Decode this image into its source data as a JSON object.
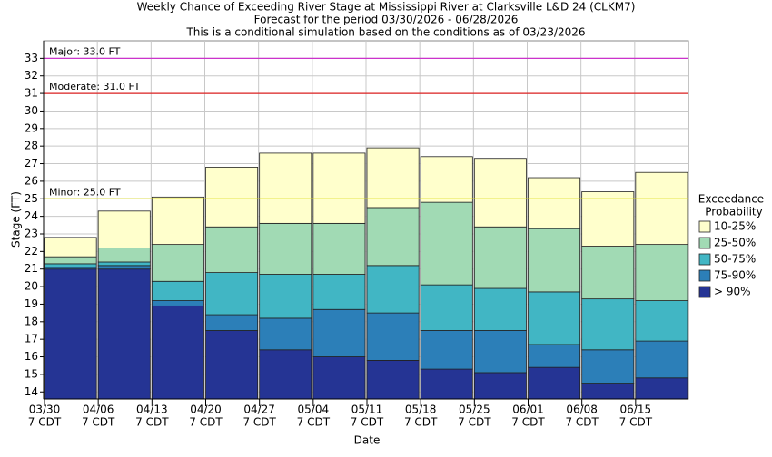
{
  "chart_data": {
    "type": "floating-bar",
    "title": [
      "Weekly Chance of Exceeding River Stage at Mississippi River at Clarksville L&D 24 (CLKM7)",
      "Forecast for the period 03/30/2026 - 06/28/2026",
      "This is a conditional simulation based on the conditions as of 03/23/2026"
    ],
    "x_label": "Date",
    "y_label": "Stage (FT)",
    "categories": [
      "03/30",
      "04/06",
      "04/13",
      "04/20",
      "04/27",
      "05/04",
      "05/11",
      "05/18",
      "05/25",
      "06/01",
      "06/08",
      "06/15"
    ],
    "category_times": [
      "7 CDT",
      "7 CDT",
      "7 CDT",
      "7 CDT",
      "7 CDT",
      "7 CDT",
      "7 CDT",
      "7 CDT",
      "7 CDT",
      "7 CDT",
      "7 CDT",
      "7 CDT"
    ],
    "ylim": [
      13.6,
      34.0
    ],
    "yticks": [
      14,
      15,
      16,
      17,
      18,
      19,
      20,
      21,
      22,
      23,
      24,
      25,
      26,
      27,
      28,
      29,
      30,
      31,
      32,
      33
    ],
    "grid": true,
    "legend_title": [
      "Exceedance",
      "Probability"
    ],
    "series": [
      {
        "name": "> 90%",
        "color": "#253494",
        "values": [
          21.0,
          21.0,
          18.9,
          17.5,
          16.4,
          16.0,
          15.8,
          15.3,
          15.1,
          15.4,
          14.5,
          14.8
        ]
      },
      {
        "name": "75-90%",
        "color": "#2c7fb8",
        "values": [
          21.1,
          21.2,
          19.2,
          18.4,
          18.2,
          18.7,
          18.5,
          17.5,
          17.5,
          16.7,
          16.4,
          16.9
        ]
      },
      {
        "name": "50-75%",
        "color": "#41b6c4",
        "values": [
          21.3,
          21.4,
          20.3,
          20.8,
          20.7,
          20.7,
          21.2,
          20.1,
          19.9,
          19.7,
          19.3,
          19.2
        ]
      },
      {
        "name": "25-50%",
        "color": "#a1dab4",
        "values": [
          21.7,
          22.2,
          22.4,
          23.4,
          23.6,
          23.6,
          24.5,
          24.8,
          23.4,
          23.3,
          22.3,
          22.4
        ]
      },
      {
        "name": "10-25%",
        "color": "#ffffcc",
        "values": [
          22.8,
          24.3,
          25.1,
          26.8,
          27.6,
          27.6,
          27.9,
          27.4,
          27.3,
          26.2,
          25.4,
          26.5
        ]
      }
    ],
    "thresholds": [
      {
        "label": "Major: 33.0 FT",
        "value": 33.0,
        "color": "#cc33cc"
      },
      {
        "label": "Moderate: 31.0 FT",
        "value": 31.0,
        "color": "#dd2222"
      },
      {
        "label": "Minor: 25.0 FT",
        "value": 25.0,
        "color": "#dddd22"
      }
    ]
  }
}
